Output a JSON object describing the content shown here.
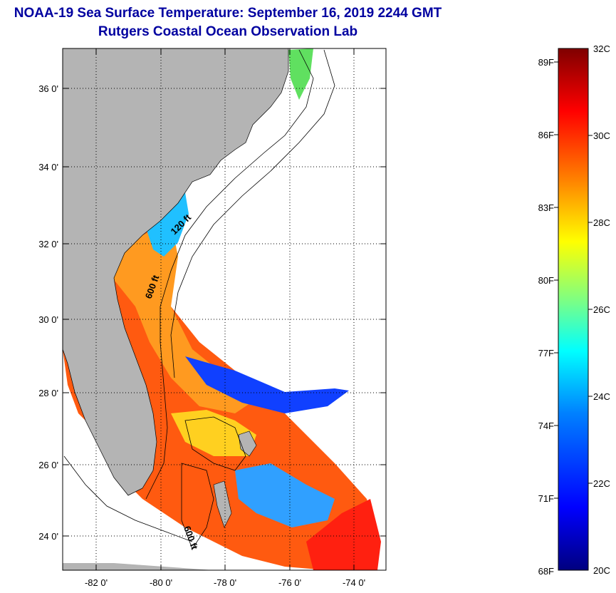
{
  "title": {
    "line1": "NOAA-19 Sea Surface Temperature:  September 16, 2019 2244 GMT",
    "line2": "Rutgers Coastal Ocean Observation Lab"
  },
  "map": {
    "lon_labels": [
      "-82 0'",
      "-80 0'",
      "-78 0'",
      "-76 0'",
      "-74 0'"
    ],
    "lat_labels": [
      "36 0'",
      "34 0'",
      "32 0'",
      "30 0'",
      "28 0'",
      "26 0'",
      "24 0'"
    ],
    "contour_labels": [
      "120 ft",
      "600 ft",
      "600 ft"
    ],
    "land_color": "#b4b4b4",
    "no_data_color": "#ffffff"
  },
  "colorbar": {
    "celsius_labels": [
      "32C",
      "30C",
      "28C",
      "26C",
      "24C",
      "22C",
      "20C"
    ],
    "fahrenheit_labels": [
      "89F",
      "86F",
      "83F",
      "80F",
      "77F",
      "74F",
      "71F",
      "68F"
    ],
    "stops": [
      "#00007f",
      "#0000ff",
      "#0080ff",
      "#00ffff",
      "#80ff80",
      "#ffff00",
      "#ff8000",
      "#ff0000",
      "#7f0000"
    ]
  }
}
